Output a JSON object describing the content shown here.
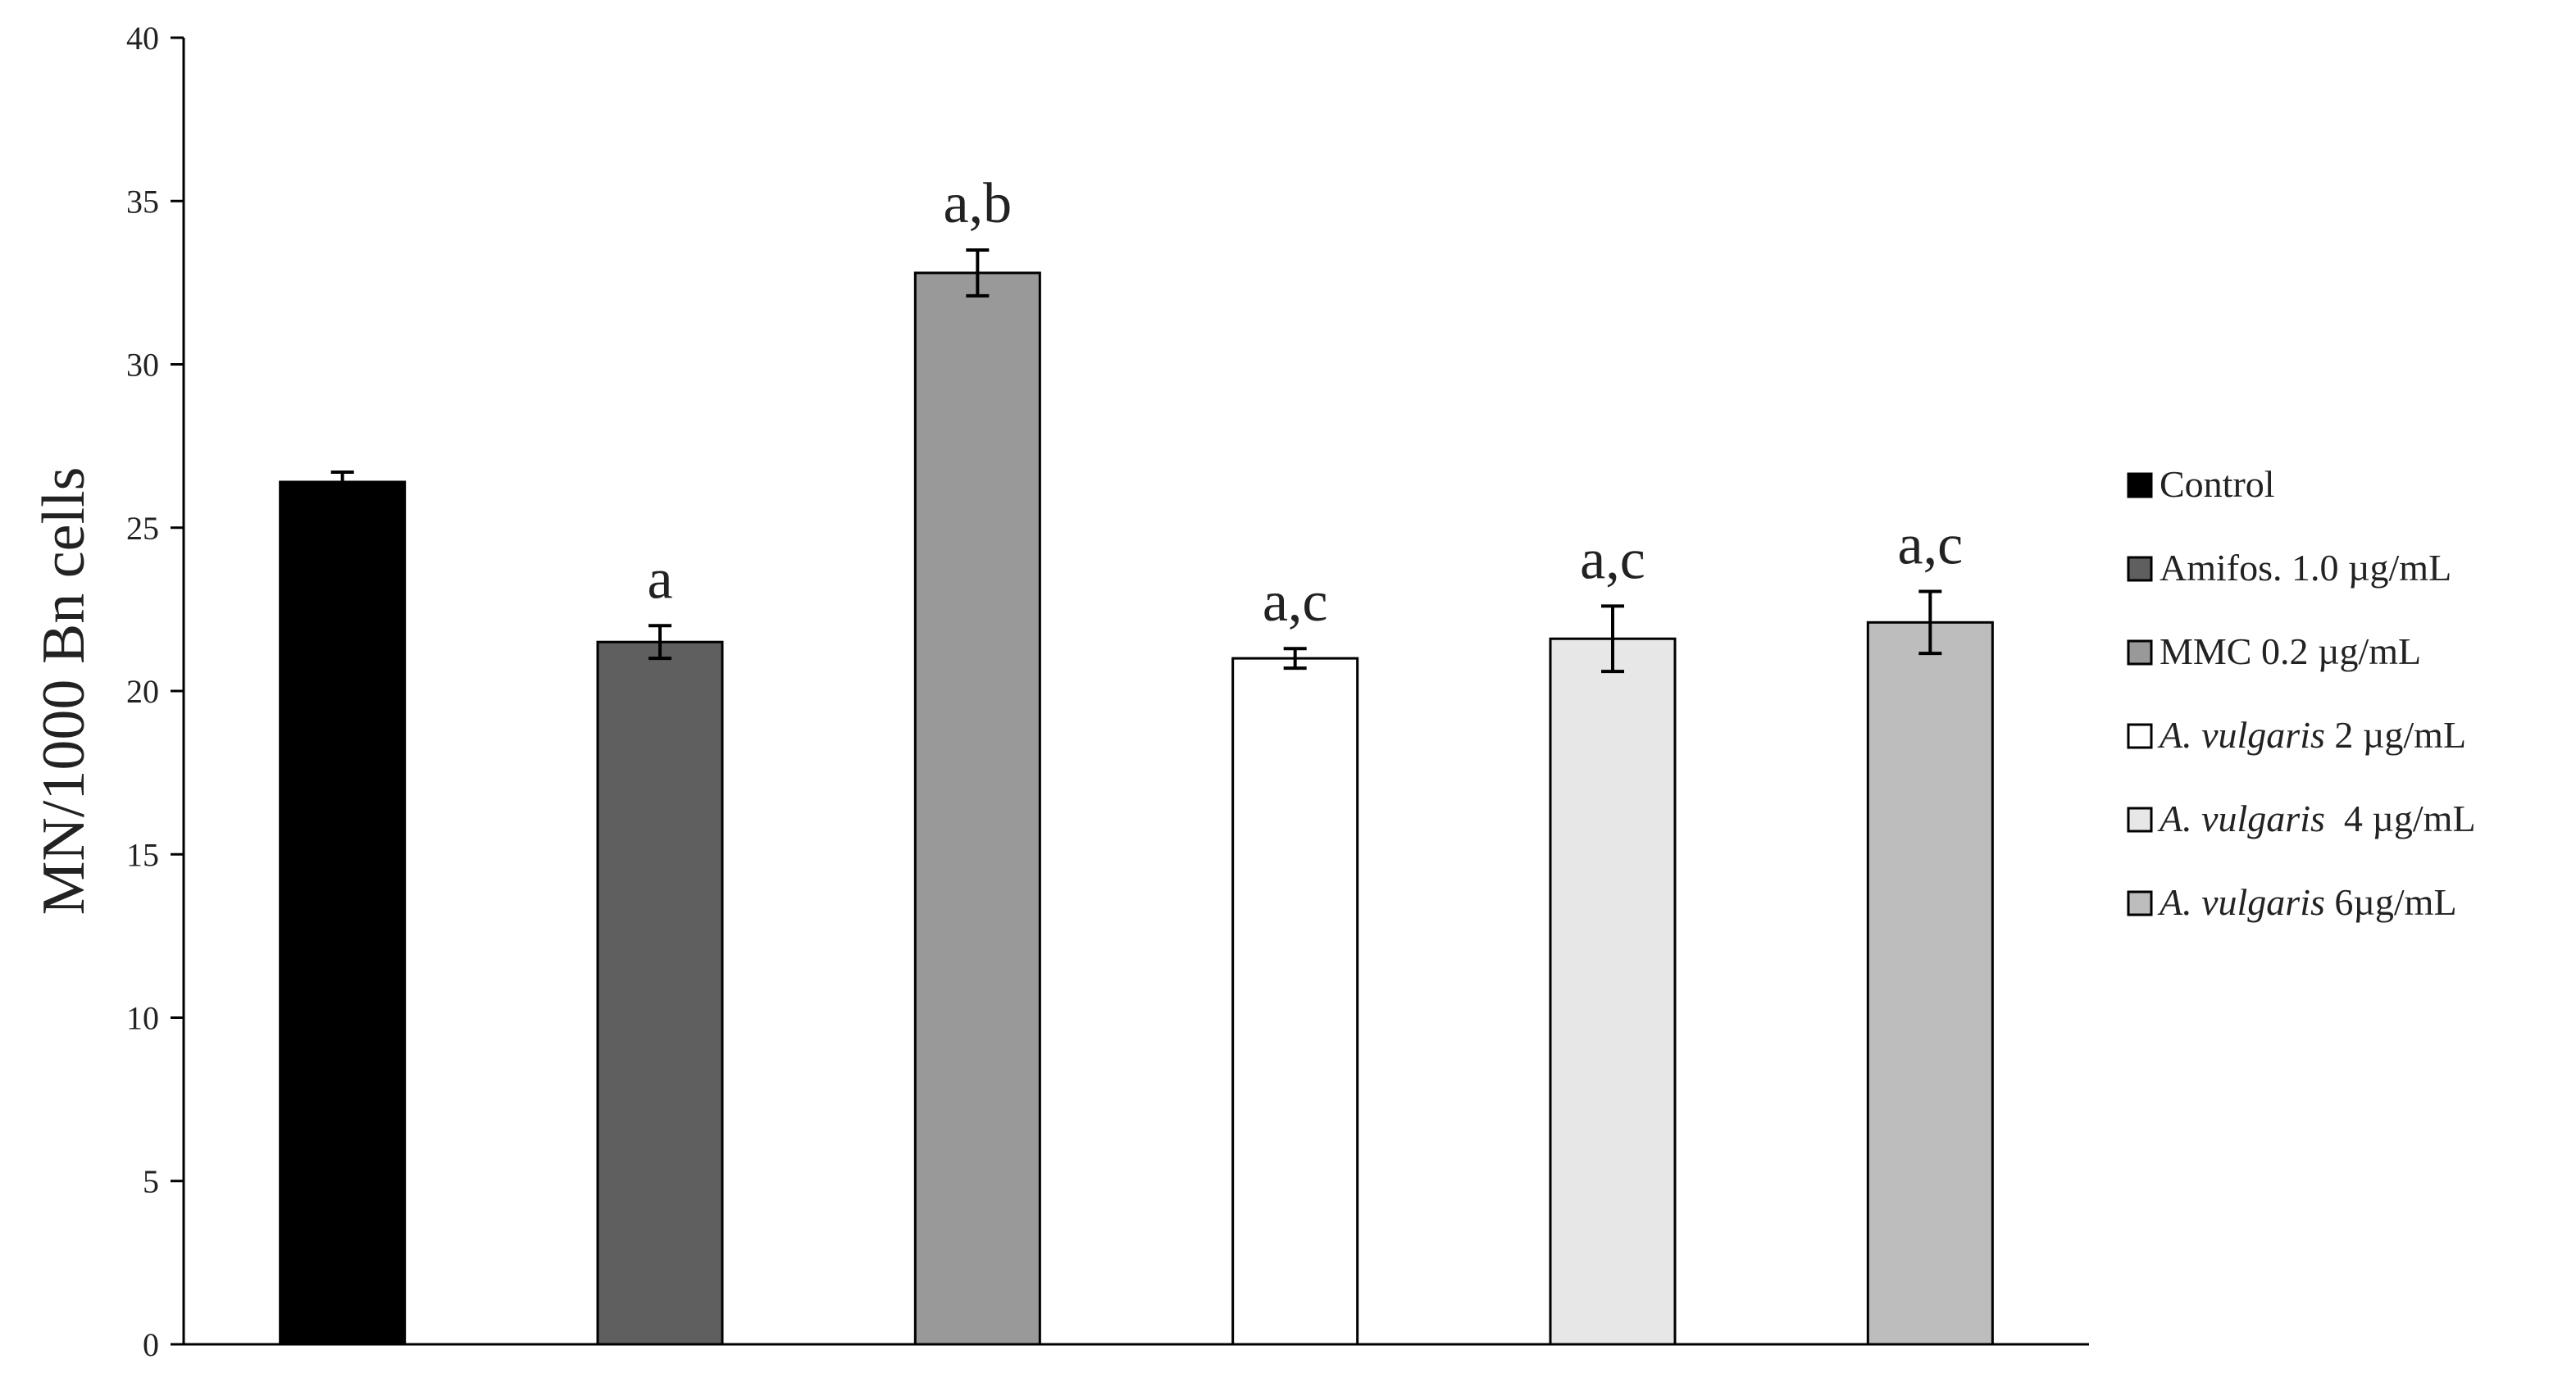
{
  "chart_data": {
    "type": "bar",
    "ylabel": "MN/1000 Bn cells",
    "xlabel": "",
    "ylim": [
      0,
      40
    ],
    "yticks": [
      0,
      5,
      10,
      15,
      20,
      25,
      30,
      35,
      40
    ],
    "grid": false,
    "legend_position": "right",
    "series": [
      {
        "legend_italic": "",
        "legend_rest": "Control",
        "value": 26.4,
        "error": 0.3,
        "annotation": "",
        "fill": "#000000"
      },
      {
        "legend_italic": "",
        "legend_rest": "Amifos. 1.0 µg/mL",
        "value": 21.5,
        "error": 0.5,
        "annotation": "a",
        "fill": "#5f5f5f"
      },
      {
        "legend_italic": "",
        "legend_rest": "MMC 0.2 µg/mL",
        "value": 32.8,
        "error": 0.7,
        "annotation": "a,b",
        "fill": "#999999"
      },
      {
        "legend_italic": "A. vulgaris",
        "legend_rest": " 2 µg/mL",
        "value": 21.0,
        "error": 0.3,
        "annotation": "a,c",
        "fill": "#ffffff"
      },
      {
        "legend_italic": "A. vulgaris",
        "legend_rest": "  4 µg/mL",
        "value": 21.6,
        "error": 1.0,
        "annotation": "a,c",
        "fill": "#e7e7e7"
      },
      {
        "legend_italic": "A. vulgaris",
        "legend_rest": " 6µg/mL",
        "value": 22.1,
        "error": 0.95,
        "annotation": "a,c",
        "fill": "#bdbdbd"
      }
    ]
  }
}
